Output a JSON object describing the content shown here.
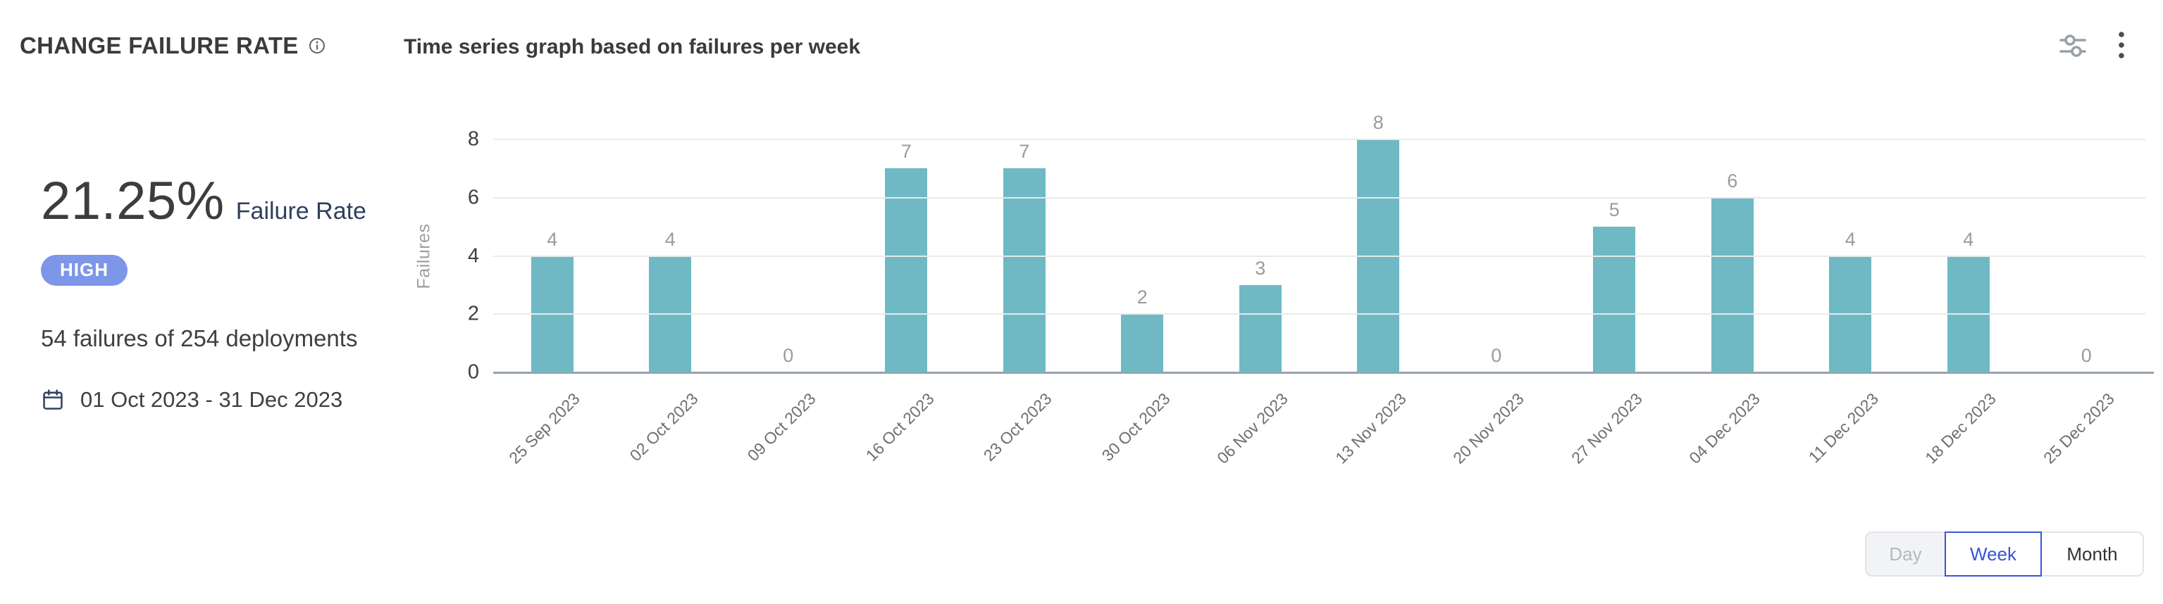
{
  "header": {
    "title": "CHANGE FAILURE RATE",
    "info_icon": "info-icon",
    "subtitle": "Time series graph based on failures per week",
    "settings_icon": "sliders-icon",
    "menu_icon": "kebab-menu-icon"
  },
  "summary": {
    "rate_value": "21.25%",
    "rate_label": "Failure Rate",
    "severity": "HIGH",
    "severity_color": "#7E96E8",
    "deployments_text": "54 failures of 254 deployments",
    "calendar_icon": "calendar-icon",
    "date_range": "01 Oct 2023 - 31 Dec 2023"
  },
  "chart_data": {
    "type": "bar",
    "title": "Time series graph based on failures per week",
    "xlabel": "",
    "ylabel": "Failures",
    "categories": [
      "25 Sep 2023",
      "02 Oct 2023",
      "09 Oct 2023",
      "16 Oct 2023",
      "23 Oct 2023",
      "30 Oct 2023",
      "06 Nov 2023",
      "13 Nov 2023",
      "20 Nov 2023",
      "27 Nov 2023",
      "04 Dec 2023",
      "11 Dec 2023",
      "18 Dec 2023",
      "25 Dec 2023"
    ],
    "values": [
      4,
      4,
      0,
      7,
      7,
      2,
      3,
      8,
      0,
      5,
      6,
      4,
      4,
      0
    ],
    "ylim": [
      0,
      8
    ],
    "yticks": [
      0,
      2,
      4,
      6,
      8
    ],
    "grid": true,
    "legend": "none",
    "bar_color": "#6FB9C4",
    "value_label_color": "#9B9B9B"
  },
  "controls": {
    "options": [
      {
        "label": "Day",
        "state": "disabled"
      },
      {
        "label": "Week",
        "state": "selected"
      },
      {
        "label": "Month",
        "state": "normal"
      }
    ],
    "selected_color": "#3A55D9",
    "selected_text_color": "#3554D8"
  },
  "colors": {
    "bar": "#6FB9C4",
    "badge": "#7E96E8",
    "accent_blue": "#3A55D9",
    "axis_line": "#98A2AE",
    "gridline": "#E9E9E9",
    "text_dark": "#3B3B3B",
    "text_navy": "#2F3F5C",
    "text_gray": "#9B9B9B"
  }
}
